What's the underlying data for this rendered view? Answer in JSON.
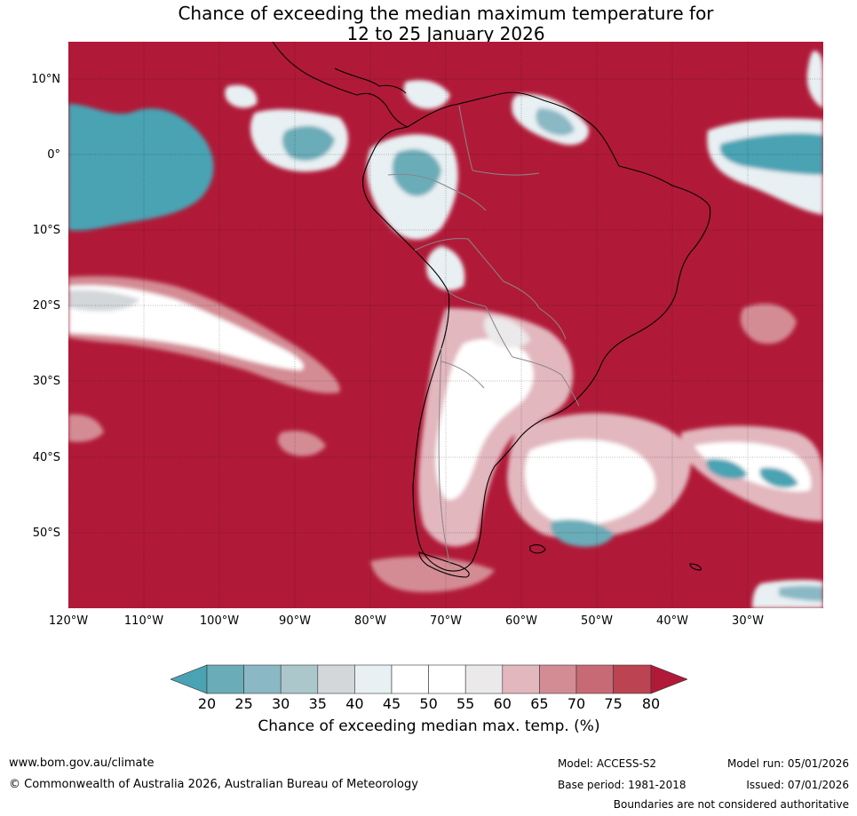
{
  "title_line1": "Chance of exceeding the median maximum temperature for",
  "title_line2": "12 to 25 January 2026",
  "lat_labels": [
    "10°N",
    "0°",
    "10°S",
    "20°S",
    "30°S",
    "40°S",
    "50°S"
  ],
  "lon_labels": [
    "120°W",
    "110°W",
    "100°W",
    "90°W",
    "80°W",
    "70°W",
    "60°W",
    "50°W",
    "40°W",
    "30°W"
  ],
  "colorbar": {
    "ticks": [
      "20",
      "25",
      "30",
      "35",
      "40",
      "45",
      "50",
      "55",
      "60",
      "65",
      "70",
      "75",
      "80"
    ],
    "colors": [
      "#4aa3b3",
      "#6aacb8",
      "#8ab8c4",
      "#abc7cb",
      "#d3d7da",
      "#e8f0f3",
      "#ffffff",
      "#ffffff",
      "#ebe9ea",
      "#e2b7be",
      "#d48c94",
      "#c86a75",
      "#bc4351",
      "#b01a38"
    ],
    "label": "Chance of exceeding median max. temp. (%)"
  },
  "footer": {
    "website": "www.bom.gov.au/climate",
    "copyright": "© Commonwealth of Australia 2026, Australian Bureau of Meteorology",
    "model": "Model: ACCESS-S2",
    "base_period": "Base period: 1981-2018",
    "model_run": "Model run: 05/01/2026",
    "issued": "Issued: 07/01/2026",
    "disclaimer": "Boundaries are not considered authoritative"
  }
}
